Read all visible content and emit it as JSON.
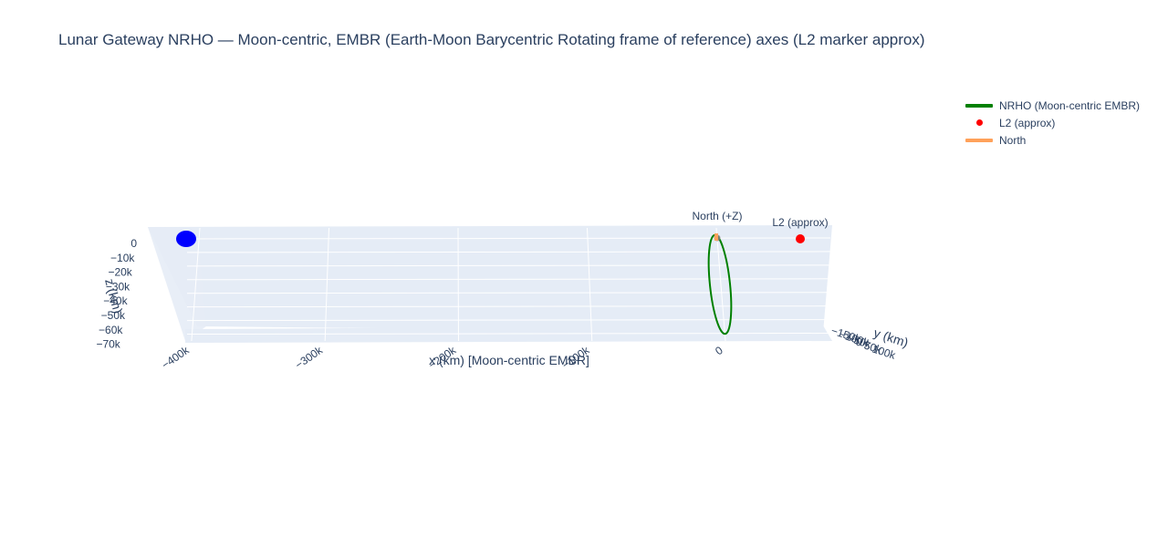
{
  "chart_data": {
    "type": "scatter3d",
    "title": "Lunar Gateway NRHO — Moon-centric, EMBR (Earth-Moon Barycentric Rotating frame of reference) axes (L2 marker approx)",
    "axes": {
      "x": {
        "label": "x (km) [Moon-centric EMBR]",
        "ticks": [
          {
            "value": -400000,
            "label": "−400k"
          },
          {
            "value": -300000,
            "label": "−300k"
          },
          {
            "value": -200000,
            "label": "−200k"
          },
          {
            "value": -100000,
            "label": "−100k"
          },
          {
            "value": 0,
            "label": "0"
          }
        ]
      },
      "y": {
        "label": "y (km)",
        "ticks": [
          {
            "value": -150000,
            "label": "−150k"
          },
          {
            "value": -100000,
            "label": "−100k"
          },
          {
            "value": -50000,
            "label": "−50k"
          },
          {
            "value": 0,
            "label": "0"
          },
          {
            "value": 50000,
            "label": "50k"
          },
          {
            "value": 100000,
            "label": "100k"
          }
        ]
      },
      "z": {
        "label": "z (km)",
        "ticks": [
          {
            "value": 0,
            "label": "0"
          },
          {
            "value": -10000,
            "label": "−10k"
          },
          {
            "value": -20000,
            "label": "−20k"
          },
          {
            "value": -30000,
            "label": "−30k"
          },
          {
            "value": -40000,
            "label": "−40k"
          },
          {
            "value": -50000,
            "label": "−50k"
          },
          {
            "value": -60000,
            "label": "−60k"
          },
          {
            "value": -70000,
            "label": "−70k"
          }
        ]
      }
    },
    "series": [
      {
        "name": "NRHO (Moon-centric EMBR)",
        "mode": "lines",
        "color": "#008000",
        "apolune_z": -70000,
        "perilune_z": 3000
      },
      {
        "name": "L2 (approx)",
        "mode": "markers+text",
        "color": "#ff0000",
        "x": 64500,
        "y": 0,
        "z": 0,
        "label": "L2 (approx)"
      },
      {
        "name": "North",
        "mode": "lines",
        "color": "#ffa15a",
        "label": "North (+Z)"
      }
    ],
    "earth": {
      "color": "#0000ff",
      "x": -384400,
      "y": 0,
      "z": 0
    },
    "moon": {
      "color": "#808080",
      "x": 0,
      "y": 0,
      "z": 0
    },
    "legend_position": "top-right"
  }
}
